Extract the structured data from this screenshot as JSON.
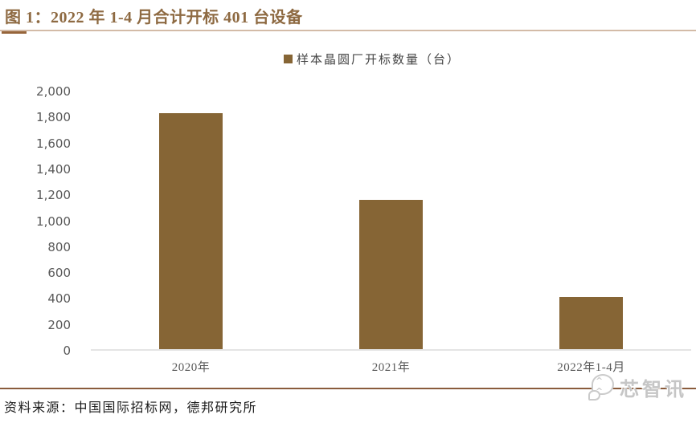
{
  "header": {
    "title": "图 1：2022 年 1-4 月合计开标 401 台设备"
  },
  "chart_data": {
    "type": "bar",
    "title": "图 1：2022 年 1-4 月合计开标 401 台设备",
    "legend": [
      "样本晶圆厂开标数量（台）"
    ],
    "legend_position": "top-center",
    "categories": [
      "2020年",
      "2021年",
      "2022年1-4月"
    ],
    "values": [
      1820,
      1150,
      401
    ],
    "xlabel": "",
    "ylabel": "",
    "ylim": [
      0,
      2000
    ],
    "y_tick_interval": 200,
    "y_ticks": [
      2000,
      1800,
      1600,
      1400,
      1200,
      1000,
      800,
      600,
      400,
      200,
      0
    ],
    "y_tick_labels": [
      "2,000",
      "1,800",
      "1,600",
      "1,400",
      "1,200",
      "1,000",
      "800",
      "600",
      "400",
      "200",
      "0"
    ],
    "grid": false,
    "bar_color": "#866535"
  },
  "footer": {
    "source": "资料来源：中国国际招标网，德邦研究所",
    "watermark": {
      "text": "芯智讯",
      "icon": "chat-bubbles-smiley-icon"
    }
  },
  "colors": {
    "title_brown": "#8e6a42",
    "bar_brown": "#866535",
    "rule_light": "#d3bba7",
    "rule_accent": "#96653a",
    "footer_rule": "#8a5c3c",
    "axis_line": "#e4e4e4",
    "tick_text": "#595959",
    "watermark_grey": "#c6c6c6"
  }
}
